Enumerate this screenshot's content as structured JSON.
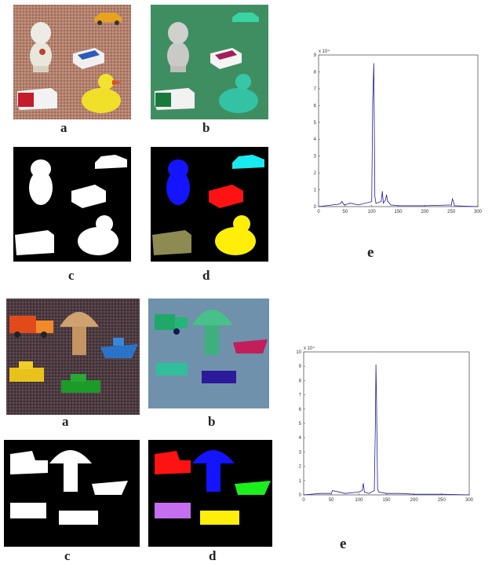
{
  "captions": {
    "top_a": "a",
    "top_b": "b",
    "top_c": "c",
    "top_d": "d",
    "top_e": "e",
    "bottom_a": "a",
    "bottom_b": "b",
    "bottom_c": "c",
    "bottom_d": "d",
    "bottom_e": "e"
  },
  "colors": {
    "carpet_top": "#b48370",
    "green_bg": "#3f8e62",
    "carpet_bottom": "#4d3c42",
    "blue_bg": "#6f91ab",
    "segment_blue": "#1414ff",
    "segment_cyan": "#19e9f0",
    "segment_red": "#ff1212",
    "segment_olive": "#8d8a52",
    "segment_yellow": "#ffee0a",
    "segment_green": "#1cf01c",
    "segment_violet": "#c56ef0",
    "histogram_line": "#1c1ca0"
  },
  "chart_data": [
    {
      "type": "line",
      "title": "",
      "xlabel": "",
      "ylabel": "",
      "exponent_label": "x 10⁴",
      "xlim": [
        0,
        300
      ],
      "ylim": [
        0,
        9
      ],
      "xticks": [
        "0",
        "50",
        "100",
        "150",
        "200",
        "250",
        "300"
      ],
      "yticks": [
        "0",
        "1",
        "2",
        "3",
        "4",
        "5",
        "6",
        "7",
        "8",
        "9"
      ],
      "x": [
        0,
        40,
        44,
        48,
        60,
        75,
        100,
        102,
        104,
        106,
        108,
        118,
        120,
        122,
        126,
        128,
        130,
        132,
        136,
        150,
        200,
        250,
        252,
        254,
        256,
        300
      ],
      "values": [
        0,
        0.15,
        0.3,
        0.1,
        0.2,
        0.1,
        0.3,
        6.3,
        8.5,
        0.6,
        0.2,
        0.3,
        0.9,
        0.2,
        0.4,
        0.7,
        0.3,
        0.25,
        0.1,
        0.05,
        0.05,
        0.1,
        0.45,
        0.3,
        0.05,
        0
      ]
    },
    {
      "type": "line",
      "title": "",
      "xlabel": "",
      "ylabel": "",
      "exponent_label": "x 10⁴",
      "xlim": [
        0,
        300
      ],
      "ylim": [
        0,
        10
      ],
      "xticks": [
        "0",
        "50",
        "100",
        "150",
        "200",
        "250",
        "300"
      ],
      "yticks": [
        "0",
        "1",
        "2",
        "3",
        "4",
        "5",
        "6",
        "7",
        "8",
        "9",
        "10"
      ],
      "x": [
        0,
        30,
        50,
        52,
        75,
        100,
        106,
        108,
        110,
        118,
        128,
        130,
        131,
        132,
        134,
        136,
        150,
        175,
        200,
        250,
        300
      ],
      "values": [
        0,
        0.1,
        0.1,
        0.3,
        0.1,
        0.2,
        0.3,
        0.8,
        0.2,
        0.1,
        0.3,
        5.0,
        9.1,
        6.8,
        0.4,
        0.2,
        0.1,
        0.1,
        0.05,
        0.05,
        0
      ]
    }
  ]
}
